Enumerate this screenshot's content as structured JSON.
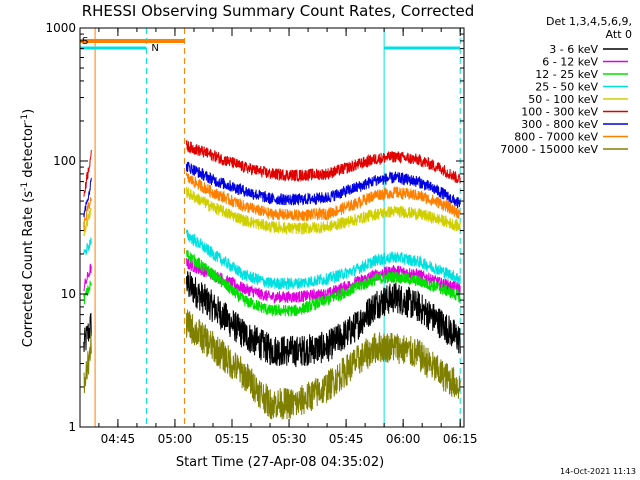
{
  "chart_data": {
    "type": "line",
    "title": "RHESSI Observing Summary Count Rates, Corrected",
    "xlabel": "Start Time (27-Apr-08 04:35:02)",
    "ylabel": "Corrected Count Rate (s⁻¹ detector⁻¹)",
    "ylabel_main": "Corrected Count Rate (s",
    "ylabel_sup1": "-1",
    "ylabel_mid": " detector",
    "ylabel_sup2": "-1",
    "ylabel_end": ")",
    "timestamp": "14-Oct-2021 11:13",
    "yscale": "log",
    "xlim": [
      "04:35:02",
      "06:16:00"
    ],
    "ylim": [
      1,
      1000
    ],
    "xticks": [
      "04:45",
      "05:00",
      "05:15",
      "05:30",
      "05:45",
      "06:00",
      "06:15"
    ],
    "yticks": [
      "1",
      "10",
      "100",
      "1000"
    ],
    "legend": {
      "position": "top-right",
      "header1": "Det 1,3,4,5,6,9,",
      "header2": "Att 0"
    },
    "markers": {
      "saa": {
        "label": "S",
        "color": "#ff8000",
        "start": "04:35:02",
        "end": "05:02:30"
      },
      "night": [
        {
          "label": "N",
          "color": "#00e0e0",
          "start": "04:35:02",
          "end": "04:52:30"
        },
        {
          "label": "",
          "color": "#00e0e0",
          "start": "05:55:00",
          "end": "06:15:00"
        }
      ],
      "vlines": [
        {
          "time": "04:39:00",
          "color": "#ff8000",
          "style": "solid"
        },
        {
          "time": "04:52:30",
          "color": "#00e0e0",
          "style": "dashed"
        },
        {
          "time": "05:02:30",
          "color": "#ff8000",
          "style": "dashed"
        },
        {
          "time": "05:55:00",
          "color": "#00e0e0",
          "style": "solid"
        },
        {
          "time": "06:15:00",
          "color": "#00e0e0",
          "style": "dashed"
        }
      ]
    },
    "series": [
      {
        "name": "3 - 6 keV",
        "color": "#000000",
        "x": [
          "04:36",
          "04:38",
          "05:03",
          "05:10",
          "05:18",
          "05:25",
          "05:32",
          "05:40",
          "05:47",
          "05:53",
          "05:58",
          "06:04",
          "06:10",
          "06:15"
        ],
        "y": [
          4,
          6,
          12,
          8,
          5,
          3.8,
          3.7,
          4,
          5.5,
          8.5,
          9.5,
          8,
          6,
          4.5
        ]
      },
      {
        "name": "6 - 12 keV",
        "color": "#e000e0",
        "x": [
          "04:36",
          "04:38",
          "05:03",
          "05:10",
          "05:18",
          "05:25",
          "05:32",
          "05:40",
          "05:47",
          "05:53",
          "05:58",
          "06:04",
          "06:10",
          "06:15"
        ],
        "y": [
          11,
          16,
          17,
          14,
          11,
          9.5,
          9.5,
          10,
          12,
          14,
          15,
          14,
          12,
          11
        ]
      },
      {
        "name": "12 - 25 keV",
        "color": "#00e000",
        "x": [
          "04:36",
          "04:38",
          "05:03",
          "05:10",
          "05:18",
          "05:25",
          "05:32",
          "05:40",
          "05:47",
          "05:53",
          "05:58",
          "06:04",
          "06:10",
          "06:15"
        ],
        "y": [
          9,
          12,
          20,
          14,
          9,
          7.5,
          7.5,
          9,
          11,
          13,
          13.5,
          12.5,
          11,
          9.5
        ]
      },
      {
        "name": "25 - 50 keV",
        "color": "#00e0e0",
        "x": [
          "04:36",
          "04:38",
          "05:03",
          "05:10",
          "05:18",
          "05:25",
          "05:32",
          "05:40",
          "05:47",
          "05:53",
          "05:58",
          "06:04",
          "06:10",
          "06:15"
        ],
        "y": [
          20,
          25,
          28,
          20,
          14,
          12,
          12,
          13,
          15,
          18,
          19,
          17.5,
          15,
          13
        ]
      },
      {
        "name": "50 - 100 keV",
        "color": "#d0d000",
        "x": [
          "04:36",
          "04:38",
          "05:03",
          "05:10",
          "05:18",
          "05:25",
          "05:32",
          "05:40",
          "05:47",
          "05:53",
          "05:58",
          "06:04",
          "06:10",
          "06:15"
        ],
        "y": [
          28,
          45,
          58,
          45,
          36,
          32,
          31,
          32,
          36,
          40,
          42,
          40,
          36,
          32
        ]
      },
      {
        "name": "100 - 300 keV",
        "color": "#e00000",
        "x": [
          "04:36",
          "04:38",
          "05:03",
          "05:10",
          "05:18",
          "05:25",
          "05:32",
          "05:40",
          "05:47",
          "05:53",
          "05:58",
          "06:04",
          "06:10",
          "06:15"
        ],
        "y": [
          55,
          115,
          130,
          110,
          90,
          80,
          78,
          80,
          92,
          104,
          108,
          102,
          88,
          72
        ]
      },
      {
        "name": "300 - 800 keV",
        "color": "#0000e0",
        "x": [
          "04:36",
          "04:38",
          "05:03",
          "05:10",
          "05:18",
          "05:25",
          "05:32",
          "05:40",
          "05:47",
          "05:53",
          "05:58",
          "06:04",
          "06:10",
          "06:15"
        ],
        "y": [
          40,
          70,
          92,
          72,
          60,
          52,
          51,
          53,
          62,
          72,
          75,
          70,
          58,
          47
        ]
      },
      {
        "name": "800 - 7000 keV",
        "color": "#ff8000",
        "x": [
          "04:36",
          "04:38",
          "05:03",
          "05:10",
          "05:18",
          "05:25",
          "05:32",
          "05:40",
          "05:47",
          "05:53",
          "05:58",
          "06:04",
          "06:10",
          "06:15"
        ],
        "y": [
          32,
          55,
          75,
          58,
          46,
          40,
          39,
          40,
          47,
          56,
          58,
          55,
          48,
          40
        ]
      },
      {
        "name": "7000 - 15000 keV",
        "color": "#808000",
        "x": [
          "04:36",
          "04:38",
          "05:03",
          "05:10",
          "05:18",
          "05:25",
          "05:32",
          "05:40",
          "05:47",
          "05:53",
          "05:58",
          "06:04",
          "06:10",
          "06:15"
        ],
        "y": [
          2,
          4,
          6,
          4,
          2.5,
          1.5,
          1.5,
          2,
          3,
          4,
          4,
          3.5,
          2.5,
          2
        ]
      }
    ]
  }
}
